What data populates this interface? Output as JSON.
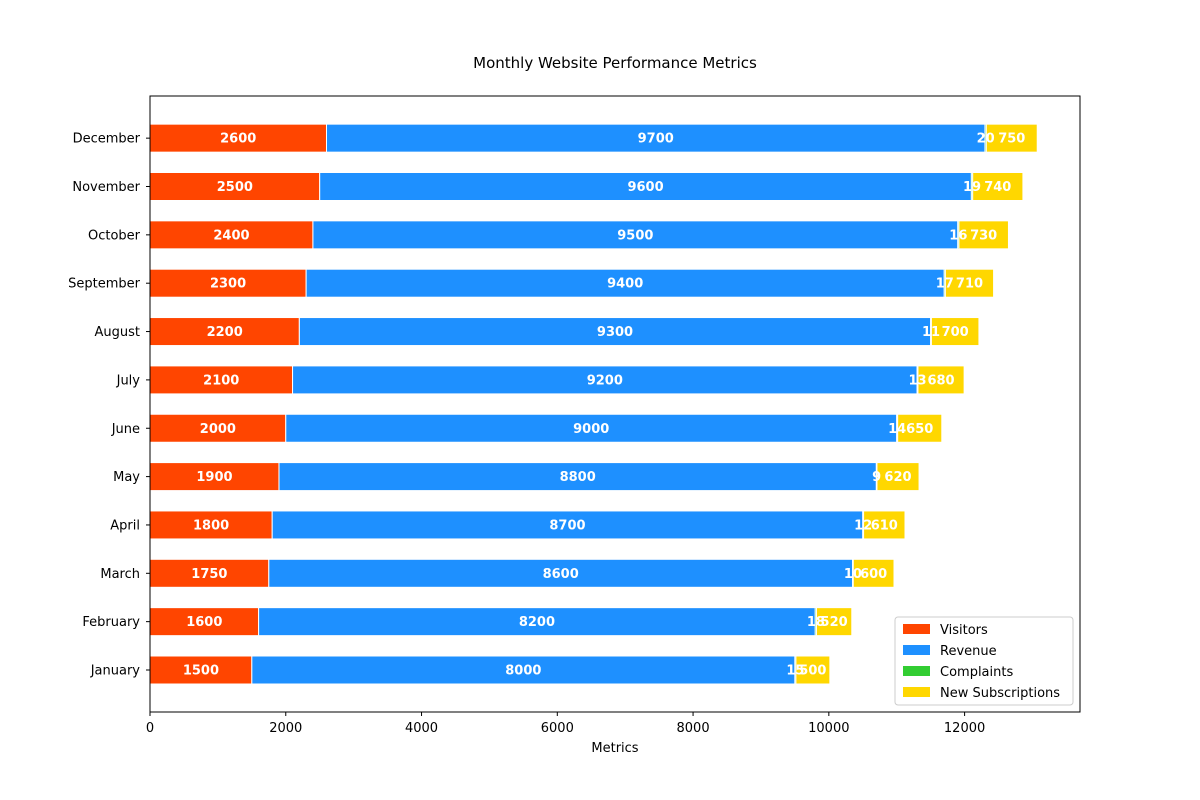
{
  "chart_data": {
    "type": "bar",
    "orientation": "horizontal",
    "stacked": true,
    "title": "Monthly Website Performance Metrics",
    "xlabel": "Metrics",
    "ylabel": "",
    "xlim": [
      0,
      13700
    ],
    "xticks": [
      0,
      2000,
      4000,
      6000,
      8000,
      10000,
      12000
    ],
    "xtick_labels": [
      "0",
      "2000",
      "4000",
      "6000",
      "8000",
      "10000",
      "12000"
    ],
    "categories": [
      "January",
      "February",
      "March",
      "April",
      "May",
      "June",
      "July",
      "August",
      "September",
      "October",
      "November",
      "December"
    ],
    "series": [
      {
        "name": "Visitors",
        "color": "#FF4500",
        "values": [
          1500,
          1600,
          1750,
          1800,
          1900,
          2000,
          2100,
          2200,
          2300,
          2400,
          2500,
          2600
        ]
      },
      {
        "name": "Revenue",
        "color": "#1E90FF",
        "values": [
          8000,
          8200,
          8600,
          8700,
          8800,
          9000,
          9200,
          9300,
          9400,
          9500,
          9600,
          9700
        ]
      },
      {
        "name": "Complaints",
        "color": "#32CD32",
        "values": [
          15,
          18,
          10,
          12,
          9,
          14,
          13,
          11,
          17,
          16,
          19,
          20
        ]
      },
      {
        "name": "New Subscriptions",
        "color": "#FFD700",
        "values": [
          500,
          520,
          600,
          610,
          620,
          650,
          680,
          700,
          710,
          730,
          740,
          750
        ]
      }
    ],
    "legend_position": "lower right",
    "grid": false
  }
}
